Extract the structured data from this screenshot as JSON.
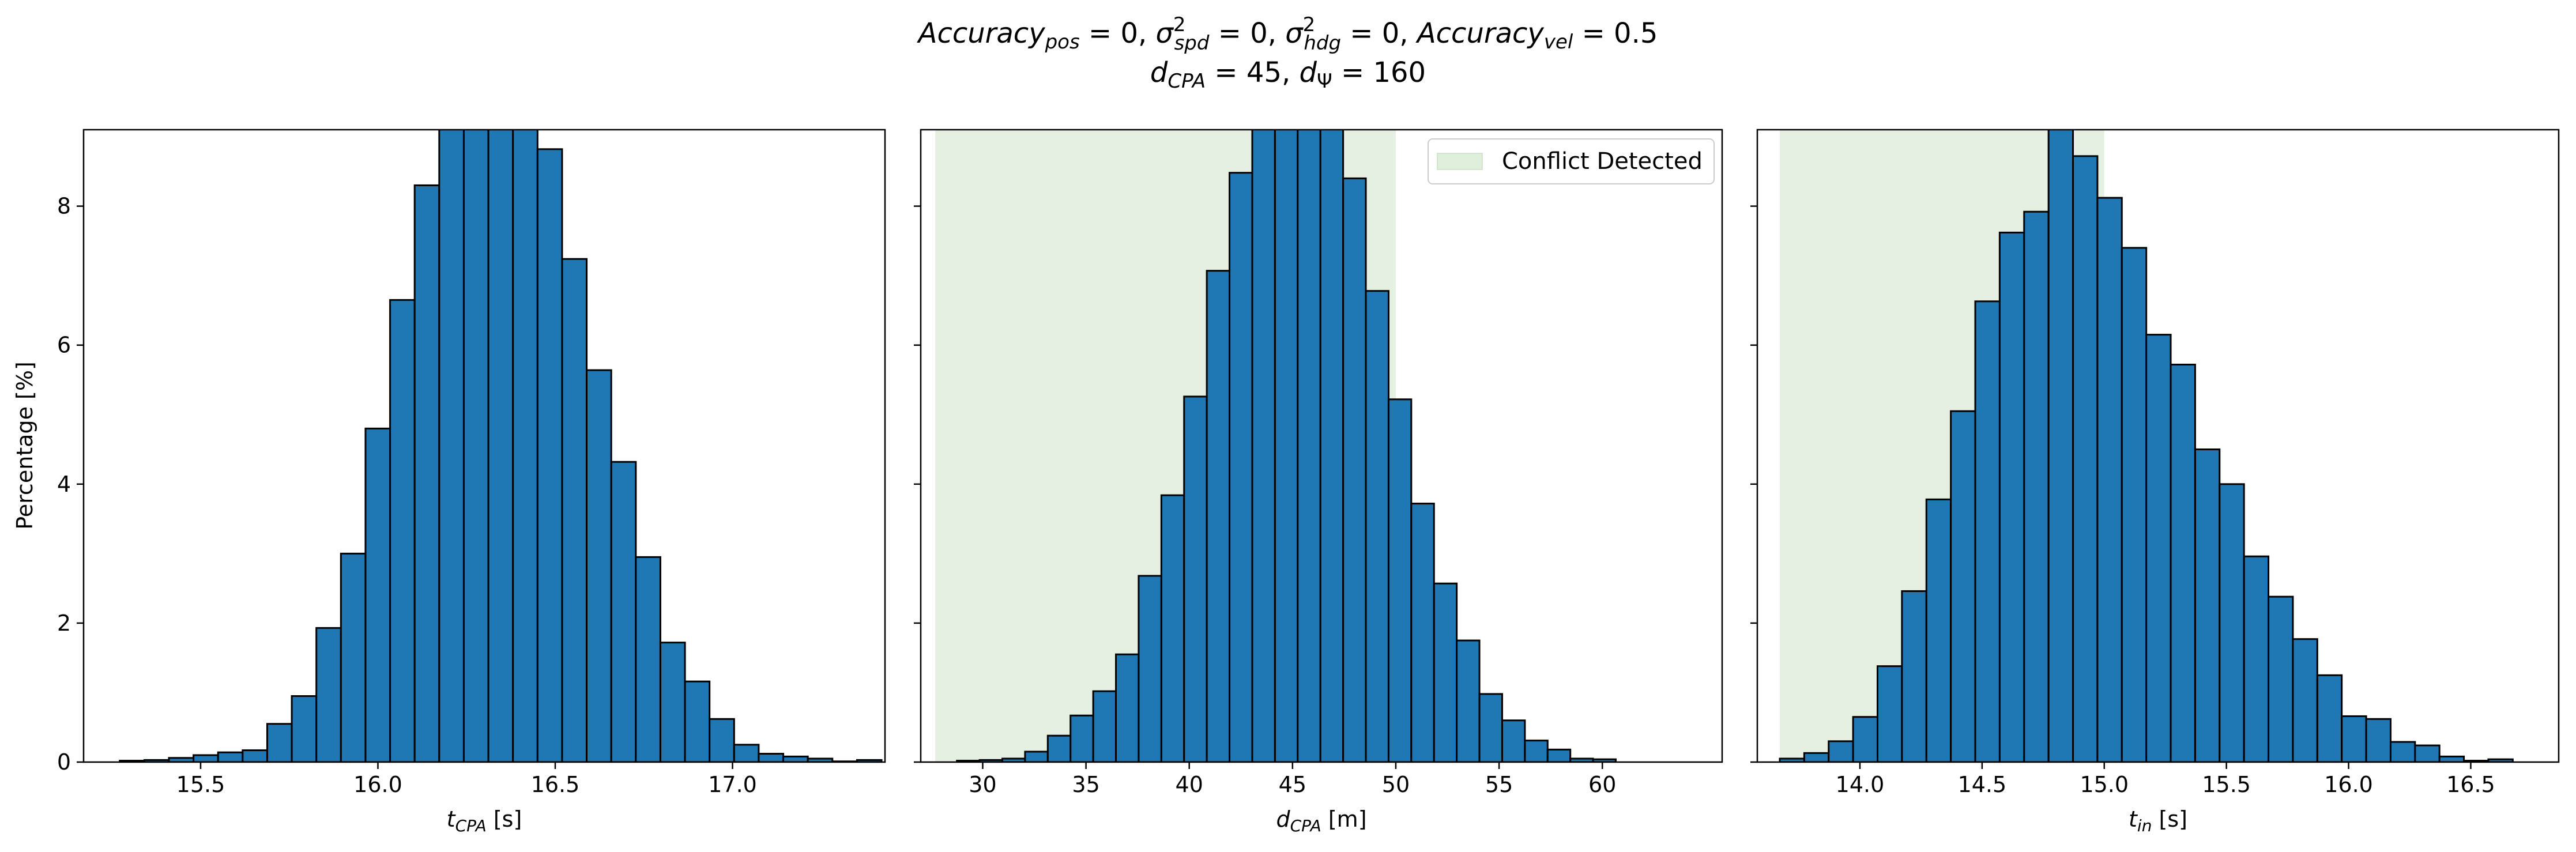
{
  "figure": {
    "title_line1": {
      "acc_pos": "Accuracy",
      "acc_pos_sub": "pos",
      "acc_pos_val": " = 0, ",
      "sigma_spd": "σ",
      "sigma_spd_sup": "2",
      "sigma_spd_sub": "spd",
      "sigma_spd_val": " = 0, ",
      "sigma_hdg": "σ",
      "sigma_hdg_sup": "2",
      "sigma_hdg_sub": "hdg",
      "sigma_hdg_val": " = 0, ",
      "acc_vel": "Accuracy",
      "acc_vel_sub": "vel",
      "acc_vel_val": " = 0.5"
    },
    "title_line2": {
      "d_cpa": "d",
      "d_cpa_sub": "CPA",
      "d_cpa_val": " = 45, ",
      "d_psi": "d",
      "d_psi_sub": "Ψ",
      "d_psi_val": " = 160"
    },
    "ylabel": "Percentage [%]"
  },
  "colors": {
    "bar_fill": "#1f77b4",
    "bar_edge": "#000000",
    "shade": "#e5f0e2",
    "legend_patch": "#e0eedc"
  },
  "chart_data": [
    {
      "type": "bar",
      "xlabel": {
        "var": "t",
        "sub": "CPA",
        "unit": " [s]"
      },
      "xlim": [
        15.17,
        17.43
      ],
      "ylim": [
        0,
        9.1
      ],
      "xticks": [
        15.5,
        16.0,
        16.5,
        17.0
      ],
      "xtick_labels": [
        "15.5",
        "16.0",
        "16.5",
        "17.0"
      ],
      "yticks": [
        0,
        2,
        4,
        6,
        8
      ],
      "ytick_labels": [
        "0",
        "2",
        "4",
        "6",
        "8"
      ],
      "bin_start": 15.272,
      "bin_width": 0.0693,
      "values": [
        0.02,
        0.03,
        0.06,
        0.1,
        0.14,
        0.17,
        0.55,
        0.95,
        1.93,
        3.0,
        4.8,
        6.65,
        8.3,
        9.3,
        9.3,
        9.3,
        9.3,
        8.82,
        7.24,
        5.64,
        4.32,
        2.95,
        1.72,
        1.16,
        0.62,
        0.25,
        0.12,
        0.08,
        0.05,
        0.01,
        0.03
      ],
      "shade": null
    },
    {
      "type": "bar",
      "xlabel": {
        "var": "d",
        "sub": "CPA",
        "unit": " [m]"
      },
      "xlim": [
        27.0,
        65.8
      ],
      "ylim": [
        0,
        9.1
      ],
      "xticks": [
        30,
        35,
        40,
        45,
        50,
        55,
        60
      ],
      "xtick_labels": [
        "30",
        "35",
        "40",
        "45",
        "50",
        "55",
        "60"
      ],
      "yticks": [
        0,
        2,
        4,
        6,
        8
      ],
      "ytick_labels": [
        "",
        "",
        "",
        "",
        ""
      ],
      "bin_start": 28.75,
      "bin_width": 1.1,
      "values": [
        0.02,
        0.03,
        0.05,
        0.15,
        0.38,
        0.67,
        1.02,
        1.55,
        2.68,
        3.84,
        5.26,
        7.07,
        8.48,
        9.3,
        9.3,
        9.3,
        9.3,
        8.4,
        6.78,
        5.22,
        3.72,
        2.57,
        1.75,
        0.98,
        0.6,
        0.31,
        0.18,
        0.05,
        0.04
      ],
      "shade": {
        "from": 27.7,
        "to": 50.0,
        "legend": "Conflict Detected"
      }
    },
    {
      "type": "bar",
      "xlabel": {
        "var": "t",
        "sub": "in",
        "unit": " [s]"
      },
      "xlim": [
        13.58,
        16.86
      ],
      "ylim": [
        0,
        9.1
      ],
      "xticks": [
        14.0,
        14.5,
        15.0,
        15.5,
        16.0,
        16.5
      ],
      "xtick_labels": [
        "14.0",
        "14.5",
        "15.0",
        "15.5",
        "16.0",
        "16.5"
      ],
      "yticks": [
        0,
        2,
        4,
        6,
        8
      ],
      "ytick_labels": [
        "",
        "",
        "",
        "",
        ""
      ],
      "bin_start": 13.672,
      "bin_width": 0.1,
      "values": [
        0.05,
        0.13,
        0.3,
        0.65,
        1.38,
        2.46,
        3.78,
        5.05,
        6.63,
        7.62,
        7.92,
        9.3,
        8.72,
        8.12,
        7.4,
        6.15,
        5.72,
        4.5,
        4.0,
        2.96,
        2.38,
        1.77,
        1.25,
        0.66,
        0.62,
        0.29,
        0.24,
        0.08,
        0.02,
        0.04
      ],
      "shade": {
        "from": 13.672,
        "to": 15.0,
        "legend": ""
      }
    }
  ]
}
